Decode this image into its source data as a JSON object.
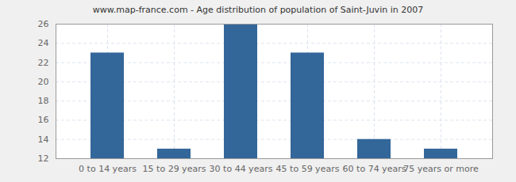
{
  "chart_data": {
    "type": "bar",
    "title": "www.map-france.com - Age distribution of population of Saint-Juvin in 2007",
    "categories": [
      "0 to 14 years",
      "15 to 29 years",
      "30 to 44 years",
      "45 to 59 years",
      "60 to 74 years",
      "75 years or more"
    ],
    "values": [
      23,
      13,
      26,
      23,
      14,
      13
    ],
    "color": "#336699",
    "ylim": [
      12,
      26
    ],
    "yticks": [
      12,
      14,
      16,
      18,
      20,
      22,
      24,
      26
    ],
    "grid": true
  }
}
